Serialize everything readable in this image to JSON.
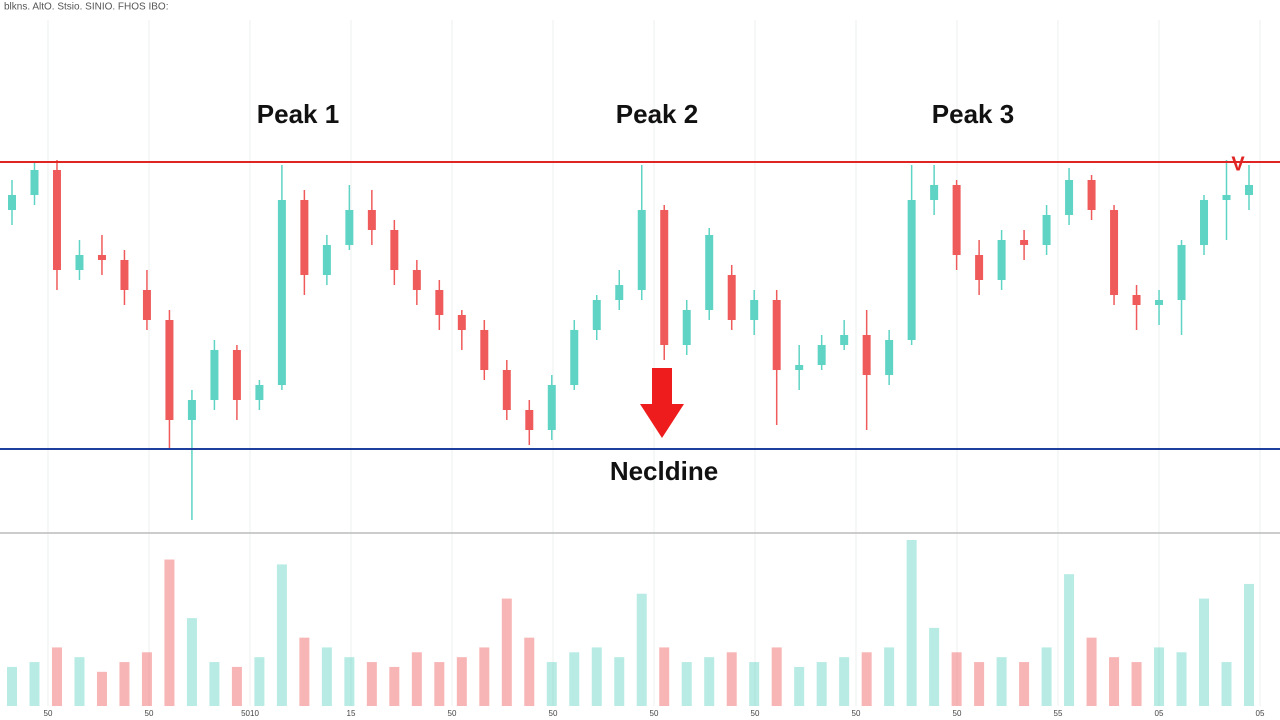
{
  "chart_data": {
    "type": "candlestick",
    "title": "blkns. AltO. Stsio. SINIO. FHOS IBO:",
    "annotations": [
      "Peak 1",
      "Peak 2",
      "Peak 3",
      "Necldine",
      "V"
    ],
    "xtick_labels": [
      "50",
      "50",
      "5010",
      "15",
      "50",
      "50",
      "50",
      "50",
      "50",
      "50",
      "55",
      "05",
      "05"
    ],
    "ylim": [
      0,
      400
    ],
    "volume_ylim": [
      0,
      170
    ],
    "grid": true,
    "up_color": "#5fd3c4",
    "down_color": "#ef5b5b",
    "hlines": [
      {
        "value": 368,
        "color": "#e02424"
      },
      {
        "value": 81,
        "color": "#1f3f9f"
      }
    ],
    "open": [
      320,
      335,
      360,
      260,
      275,
      270,
      240,
      210,
      110,
      130,
      180,
      130,
      145,
      330,
      255,
      285,
      320,
      300,
      260,
      240,
      215,
      200,
      160,
      120,
      100,
      145,
      200,
      230,
      240,
      320,
      185,
      220,
      255,
      210,
      230,
      160,
      165,
      185,
      195,
      155,
      190,
      330,
      345,
      275,
      250,
      290,
      285,
      315,
      350,
      320,
      235,
      225,
      230,
      285,
      330,
      335
    ],
    "high": [
      350,
      368,
      370,
      290,
      295,
      280,
      260,
      220,
      140,
      190,
      185,
      150,
      365,
      340,
      295,
      345,
      340,
      310,
      270,
      250,
      220,
      210,
      170,
      130,
      155,
      210,
      235,
      260,
      365,
      325,
      230,
      302,
      265,
      240,
      240,
      185,
      195,
      210,
      220,
      200,
      365,
      365,
      350,
      290,
      300,
      300,
      325,
      362,
      355,
      325,
      245,
      240,
      290,
      335,
      370,
      365
    ],
    "low": [
      305,
      325,
      240,
      250,
      255,
      225,
      200,
      80,
      10,
      120,
      110,
      120,
      140,
      235,
      245,
      280,
      285,
      245,
      225,
      200,
      180,
      150,
      110,
      85,
      90,
      140,
      190,
      220,
      230,
      170,
      175,
      210,
      200,
      195,
      105,
      140,
      160,
      180,
      100,
      145,
      185,
      315,
      260,
      235,
      240,
      270,
      275,
      305,
      310,
      225,
      200,
      205,
      195,
      275,
      290,
      320
    ],
    "close": [
      335,
      360,
      260,
      275,
      270,
      240,
      210,
      110,
      130,
      180,
      130,
      145,
      330,
      255,
      285,
      320,
      300,
      260,
      240,
      215,
      200,
      160,
      120,
      100,
      145,
      200,
      230,
      245,
      320,
      185,
      220,
      295,
      210,
      230,
      160,
      165,
      185,
      195,
      155,
      190,
      330,
      345,
      275,
      250,
      290,
      285,
      315,
      350,
      320,
      235,
      225,
      230,
      285,
      330,
      335,
      345
    ],
    "volume": [
      40,
      45,
      60,
      50,
      35,
      45,
      55,
      150,
      90,
      45,
      40,
      50,
      145,
      70,
      60,
      50,
      45,
      40,
      55,
      45,
      50,
      60,
      110,
      70,
      45,
      55,
      60,
      50,
      115,
      60,
      45,
      50,
      55,
      45,
      60,
      40,
      45,
      50,
      55,
      60,
      170,
      80,
      55,
      45,
      50,
      45,
      60,
      135,
      70,
      50,
      45,
      60,
      55,
      110,
      45,
      125
    ]
  }
}
